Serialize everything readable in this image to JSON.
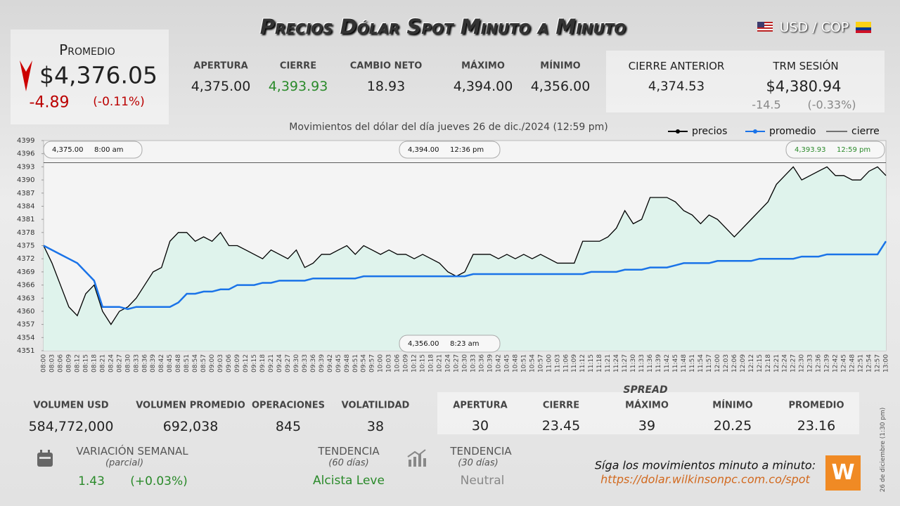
{
  "header": {
    "title": "Precios Dólar Spot Minuto a Minuto",
    "pair": "USD / COP"
  },
  "promedio": {
    "label": "Promedio",
    "value": "$4,376.05",
    "change": "-4.89",
    "change_pct": "(-0.11%)"
  },
  "stats": [
    {
      "label": "APERTURA",
      "value": "4,375.00"
    },
    {
      "label": "CIERRE",
      "value": "4,393.93"
    },
    {
      "label": "CAMBIO NETO",
      "value": "18.93"
    },
    {
      "label": "MÁXIMO",
      "value": "4,394.00"
    },
    {
      "label": "MÍNIMO",
      "value": "4,356.00"
    }
  ],
  "previous": {
    "cierre_label": "CIERRE ANTERIOR",
    "cierre_value": "4,374.53",
    "trm_label": "TRM SESIÓN",
    "trm_value": "$4,380.94",
    "trm_change": "-14.5",
    "trm_change_pct": "(-0.33%)"
  },
  "chart_data": {
    "type": "line",
    "subtitle": "Movimientos del dólar del día jueves 26 de dic./2024 (12:59 pm)",
    "categories": [
      "08:00",
      "08:03",
      "08:06",
      "08:09",
      "08:12",
      "08:15",
      "08:18",
      "08:21",
      "08:24",
      "08:27",
      "08:30",
      "08:33",
      "08:36",
      "08:39",
      "08:42",
      "08:45",
      "08:48",
      "08:51",
      "08:54",
      "08:57",
      "09:00",
      "09:03",
      "09:06",
      "09:09",
      "09:12",
      "09:15",
      "09:18",
      "09:21",
      "09:24",
      "09:27",
      "09:30",
      "09:33",
      "09:36",
      "09:39",
      "09:42",
      "09:45",
      "09:48",
      "09:51",
      "09:54",
      "09:57",
      "10:00",
      "10:03",
      "10:06",
      "10:09",
      "10:12",
      "10:15",
      "10:18",
      "10:21",
      "10:24",
      "10:27",
      "10:30",
      "10:33",
      "10:36",
      "10:39",
      "10:42",
      "10:45",
      "10:48",
      "10:51",
      "10:54",
      "10:57",
      "11:00",
      "11:03",
      "11:06",
      "11:09",
      "11:12",
      "11:15",
      "11:18",
      "11:21",
      "11:24",
      "11:27",
      "11:30",
      "11:33",
      "11:36",
      "11:39",
      "11:42",
      "11:45",
      "11:48",
      "11:51",
      "11:54",
      "11:57",
      "12:00",
      "12:03",
      "12:06",
      "12:09",
      "12:12",
      "12:15",
      "12:18",
      "12:21",
      "12:24",
      "12:27",
      "12:30",
      "12:33",
      "12:36",
      "12:39",
      "12:42",
      "12:45",
      "12:48",
      "12:51",
      "12:54",
      "12:57",
      "13:00"
    ],
    "series": [
      {
        "name": "precios",
        "color": "#000000",
        "values": [
          4375,
          4371,
          4366,
          4361,
          4359,
          4364,
          4366,
          4360,
          4357,
          4360,
          4361,
          4363,
          4366,
          4369,
          4370,
          4376,
          4378,
          4378,
          4376,
          4377,
          4376,
          4378,
          4375,
          4375,
          4374,
          4373,
          4372,
          4374,
          4373,
          4372,
          4374,
          4370,
          4371,
          4373,
          4373,
          4374,
          4375,
          4373,
          4375,
          4374,
          4373,
          4374,
          4373,
          4373,
          4372,
          4373,
          4372,
          4371,
          4369,
          4368,
          4369,
          4373,
          4373,
          4373,
          4372,
          4373,
          4372,
          4373,
          4372,
          4373,
          4372,
          4371,
          4371,
          4371,
          4376,
          4376,
          4376,
          4377,
          4379,
          4383,
          4380,
          4381,
          4386,
          4386,
          4386,
          4385,
          4383,
          4382,
          4380,
          4382,
          4381,
          4379,
          4377,
          4379,
          4381,
          4383,
          4385,
          4389,
          4391,
          4393,
          4390,
          4391,
          4392,
          4393,
          4391,
          4391,
          4390,
          4390,
          4392,
          4393,
          4391
        ]
      },
      {
        "name": "promedio",
        "color": "#1a73e8",
        "values": [
          4375,
          4374,
          4373,
          4372,
          4371,
          4369,
          4367,
          4361,
          4361,
          4361,
          4360.5,
          4361,
          4361,
          4361,
          4361,
          4361,
          4362,
          4364,
          4364,
          4364.5,
          4364.5,
          4365,
          4365,
          4366,
          4366,
          4366,
          4366.5,
          4366.5,
          4367,
          4367,
          4367,
          4367,
          4367.5,
          4367.5,
          4367.5,
          4367.5,
          4367.5,
          4367.5,
          4368,
          4368,
          4368,
          4368,
          4368,
          4368,
          4368,
          4368,
          4368,
          4368,
          4368,
          4368,
          4368,
          4368.5,
          4368.5,
          4368.5,
          4368.5,
          4368.5,
          4368.5,
          4368.5,
          4368.5,
          4368.5,
          4368.5,
          4368.5,
          4368.5,
          4368.5,
          4368.5,
          4369,
          4369,
          4369,
          4369,
          4369.5,
          4369.5,
          4369.5,
          4370,
          4370,
          4370,
          4370.5,
          4371,
          4371,
          4371,
          4371,
          4371.5,
          4371.5,
          4371.5,
          4371.5,
          4371.5,
          4372,
          4372,
          4372,
          4372,
          4372,
          4372.5,
          4372.5,
          4372.5,
          4373,
          4373,
          4373,
          4373,
          4373,
          4373,
          4373,
          4376
        ]
      }
    ],
    "reference_line": {
      "name": "cierre",
      "value": 4393.93,
      "color": "#000000"
    },
    "ylim": [
      4351,
      4399
    ],
    "yticks": [
      4351,
      4354,
      4357,
      4360,
      4363,
      4366,
      4369,
      4372,
      4375,
      4378,
      4381,
      4384,
      4387,
      4390,
      4393,
      4396,
      4399
    ],
    "area_color": "#dff3ec",
    "annotations": [
      {
        "value": "4,375.00",
        "time": "8:00 am"
      },
      {
        "value": "4,394.00",
        "time": "12:36 pm"
      },
      {
        "value": "4,393.93",
        "time": "12:59 pm"
      },
      {
        "value": "4,356.00",
        "time": "8:23 am"
      }
    ]
  },
  "volume": [
    {
      "label": "VOLUMEN USD",
      "value": "584,772,000"
    },
    {
      "label": "VOLUMEN PROMEDIO",
      "value": "692,038"
    },
    {
      "label": "OPERACIONES",
      "value": "845"
    },
    {
      "label": "VOLATILIDAD",
      "value": "38"
    }
  ],
  "spread": {
    "title": "SPREAD",
    "items": [
      {
        "label": "APERTURA",
        "value": "30"
      },
      {
        "label": "CIERRE",
        "value": "23.45"
      },
      {
        "label": "MÁXIMO",
        "value": "39"
      },
      {
        "label": "MÍNIMO",
        "value": "20.25"
      },
      {
        "label": "PROMEDIO",
        "value": "23.16"
      }
    ]
  },
  "weekly": {
    "label": "VARIACIÓN SEMANAL",
    "sub": "(parcial)",
    "value": "1.43",
    "pct": "(+0.03%)"
  },
  "trend60": {
    "label": "TENDENCIA",
    "sub": "(60 días)",
    "value": "Alcista Leve"
  },
  "trend30": {
    "label": "TENDENCIA",
    "sub": "(30 días)",
    "value": "Neutral"
  },
  "footer": {
    "text": "Síga los movimientos minuto a minuto:",
    "link": "https://dolar.wilkinsonpc.com.co/spot",
    "stamp": "26 de diciembre (1:30 pm)"
  }
}
